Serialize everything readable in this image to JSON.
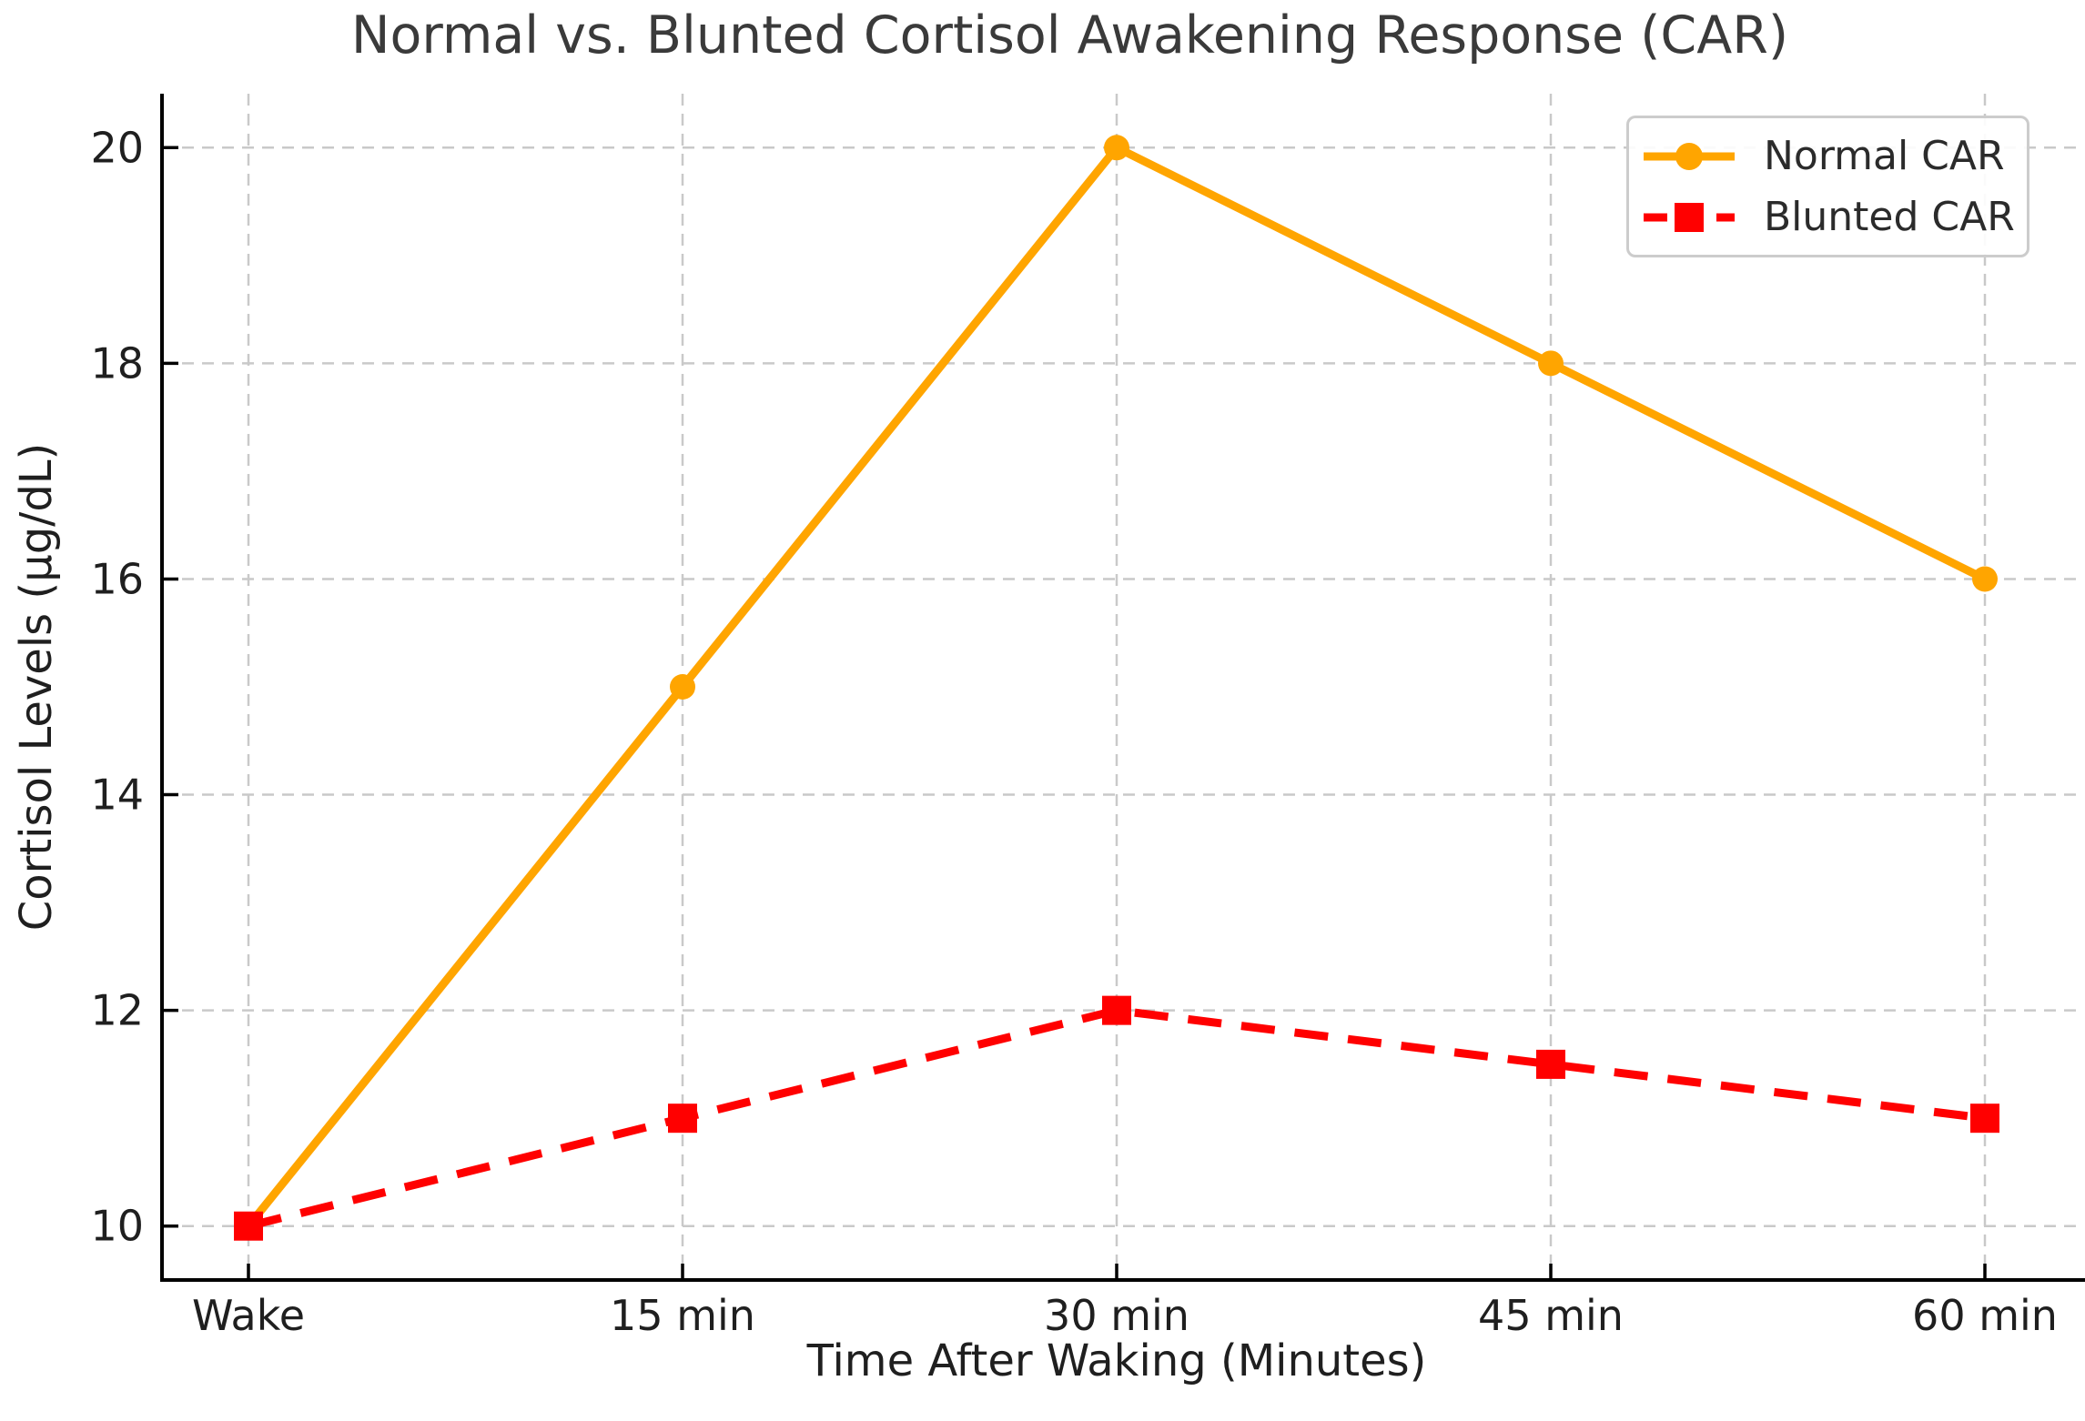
{
  "chart_data": {
    "type": "line",
    "title": "Normal vs. Blunted Cortisol Awakening Response (CAR)",
    "xlabel": "Time After Waking (Minutes)",
    "ylabel": "Cortisol Levels (µg/dL)",
    "categories": [
      "Wake",
      "15 min",
      "30 min",
      "45 min",
      "60 min"
    ],
    "series": [
      {
        "name": "Normal CAR",
        "values": [
          10,
          15,
          20,
          18,
          16
        ],
        "color": "#FFA500",
        "line_style": "solid",
        "marker": "circle"
      },
      {
        "name": "Blunted CAR",
        "values": [
          10,
          11,
          12,
          11.5,
          11
        ],
        "color": "#FF0000",
        "line_style": "dashed",
        "marker": "square"
      }
    ],
    "yticks": [
      10,
      12,
      14,
      16,
      18,
      20
    ],
    "ylim": [
      9.5,
      20.5
    ],
    "grid": true,
    "grid_style": "dashed",
    "grid_color": "#c9c9c9",
    "axis_color": "#000000",
    "tick_text_color": "#1f1f1f",
    "legend_position": "upper right",
    "legend_border_color": "#cccccc"
  }
}
